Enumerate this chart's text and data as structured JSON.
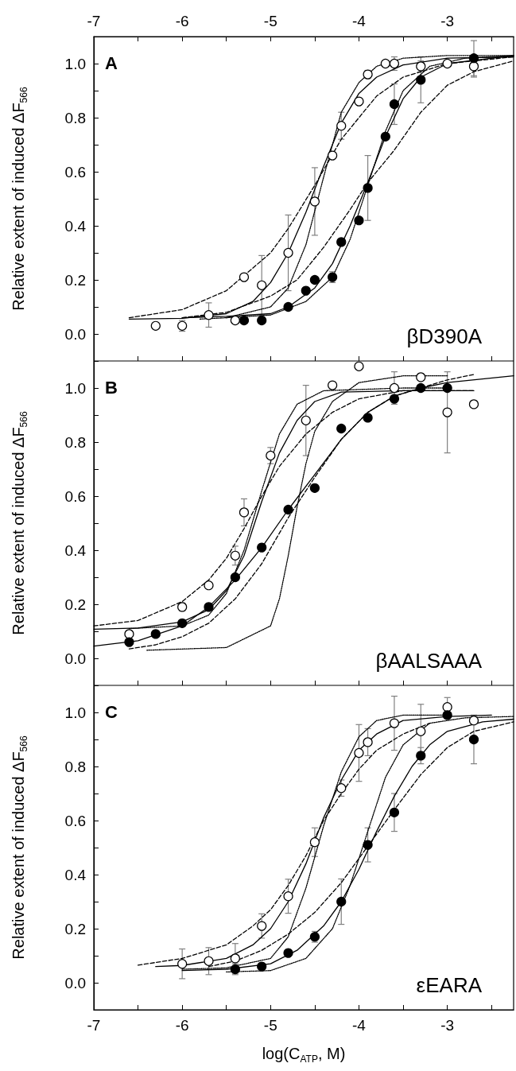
{
  "chart_data": [
    {
      "type": "scatter",
      "ylabel": "Relative extent of induced ΔF$_{566}$",
      "annotations": [
        "A",
        "βD390A"
      ],
      "ylim": [
        -0.1,
        1.1
      ],
      "xlim": [
        -7,
        -2.25
      ],
      "xticks": [
        -7,
        {
          "value": -6.5,
          "label": null
        },
        -6,
        {
          "value": -5.5,
          "label": null
        },
        -5,
        {
          "value": -4.5,
          "label": null
        },
        -4,
        {
          "value": -3.5,
          "label": null
        },
        -3,
        {
          "value": -2.5,
          "label": null
        }
      ],
      "yticks": [
        {
          "value": -0.1,
          "label": null
        },
        {
          "value": 0,
          "label": "0.0"
        },
        {
          "value": 0.1,
          "label": null
        },
        0.2,
        {
          "value": 0.3,
          "label": null
        },
        0.4,
        {
          "value": 0.5,
          "label": null
        },
        0.6,
        {
          "value": 0.7,
          "label": null
        },
        0.8,
        {
          "value": 0.9,
          "label": null
        },
        {
          "value": 1,
          "label": "1.0"
        },
        {
          "value": 1.1,
          "label": null
        }
      ],
      "series": [
        {
          "type": "line",
          "color": "#000000",
          "line_style": "solid",
          "marker": "none",
          "x": [
            -6.6,
            -6.0,
            -5.5,
            -5.2,
            -5.0,
            -4.8,
            -4.6,
            -4.4,
            -4.2,
            -4.0,
            -3.8,
            -3.5,
            -3.0,
            -2.25
          ],
          "values": [
            0.055,
            0.058,
            0.075,
            0.12,
            0.19,
            0.3,
            0.45,
            0.62,
            0.78,
            0.89,
            0.95,
            0.995,
            1.02,
            1.025
          ]
        },
        {
          "type": "line",
          "color": "#000000",
          "line_style": "dashed",
          "marker": "none",
          "x": [
            -6.6,
            -6.0,
            -5.5,
            -5.0,
            -4.8,
            -4.5,
            -4.2,
            -4.0,
            -3.8,
            -3.5,
            -3.0,
            -2.25
          ],
          "values": [
            0.06,
            0.09,
            0.16,
            0.3,
            0.39,
            0.55,
            0.72,
            0.8,
            0.88,
            0.95,
            1.0,
            1.025
          ]
        },
        {
          "type": "line",
          "color": "#000000",
          "line_style": "dotted",
          "marker": "none",
          "x": [
            -5.8,
            -5.5,
            -5.0,
            -4.8,
            -4.6,
            -4.4,
            -4.2,
            -4.0,
            -3.8,
            -3.5,
            -3.0,
            -2.25
          ],
          "values": [
            0.055,
            0.06,
            0.1,
            0.17,
            0.33,
            0.58,
            0.82,
            0.93,
            0.99,
            1.02,
            1.03,
            1.03
          ]
        },
        {
          "type": "line",
          "color": "#000000",
          "line_style": "solid",
          "marker": "none",
          "x": [
            -6.0,
            -5.5,
            -5.0,
            -4.8,
            -4.5,
            -4.3,
            -4.1,
            -3.9,
            -3.7,
            -3.5,
            -3.3,
            -3.0,
            -2.25
          ],
          "values": [
            0.06,
            0.065,
            0.075,
            0.1,
            0.17,
            0.26,
            0.4,
            0.56,
            0.73,
            0.87,
            0.95,
            1.0,
            1.03
          ]
        },
        {
          "type": "line",
          "color": "#000000",
          "line_style": "dashed",
          "marker": "none",
          "x": [
            -6.0,
            -5.5,
            -5.0,
            -4.7,
            -4.4,
            -4.1,
            -3.9,
            -3.6,
            -3.3,
            -3.0,
            -2.7,
            -2.25
          ],
          "values": [
            0.06,
            0.08,
            0.14,
            0.2,
            0.32,
            0.46,
            0.56,
            0.68,
            0.82,
            0.92,
            0.97,
            1.01
          ]
        },
        {
          "type": "line",
          "color": "#000000",
          "line_style": "dotted",
          "marker": "none",
          "x": [
            -5.5,
            -5.0,
            -4.6,
            -4.3,
            -4.1,
            -3.9,
            -3.7,
            -3.5,
            -3.2,
            -2.8,
            -2.25
          ],
          "values": [
            0.06,
            0.07,
            0.12,
            0.21,
            0.35,
            0.55,
            0.75,
            0.9,
            0.99,
            1.02,
            1.03
          ]
        },
        {
          "color": "#ffffff",
          "marker": "circle",
          "x": [
            -6.3,
            -6.0,
            -5.7,
            -5.4,
            -5.3,
            -5.1,
            -4.8,
            -4.5,
            -4.3,
            -4.2,
            -4.0,
            -3.9,
            -3.7,
            -3.6,
            -3.3,
            -3.0,
            -2.7
          ],
          "values": [
            0.03,
            0.03,
            0.07,
            0.05,
            0.21,
            0.18,
            0.3,
            0.49,
            0.66,
            0.77,
            0.86,
            0.96,
            1.0,
            1.0,
            0.99,
            1.0,
            0.99
          ],
          "errors": [
            null,
            0.02,
            0.045,
            null,
            null,
            0.11,
            0.14,
            0.125,
            null,
            0.05,
            null,
            0.015,
            null,
            0.025,
            0.02,
            null,
            0.04
          ]
        },
        {
          "color": "#000000",
          "marker": "circle",
          "x": [
            -5.3,
            -5.1,
            -4.8,
            -4.6,
            -4.5,
            -4.3,
            -4.2,
            -4.0,
            -3.9,
            -3.7,
            -3.6,
            -3.3,
            -2.7
          ],
          "values": [
            0.05,
            0.05,
            0.1,
            0.16,
            0.2,
            0.21,
            0.34,
            0.42,
            0.54,
            0.73,
            0.85,
            0.94,
            1.02
          ],
          "errors": [
            null,
            0.01,
            null,
            null,
            null,
            0.02,
            null,
            null,
            0.12,
            null,
            0.075,
            0.085,
            0.065
          ]
        }
      ]
    },
    {
      "type": "scatter",
      "ylabel": "Relative extent of induced ΔF$_{566}$",
      "annotations": [
        "B",
        "βAALSAAA"
      ],
      "xlim": [
        -7,
        -2.25
      ],
      "ylim": [
        -0.1,
        1.1
      ],
      "tick_labels": "y",
      "xticks": [
        -7,
        -6.5,
        -6,
        -5.5,
        -5,
        -4.5,
        -4,
        -3.5,
        -3,
        -2.5
      ],
      "yticks": [
        {
          "value": -0.1,
          "label": null
        },
        {
          "value": 0,
          "label": "0.0"
        },
        {
          "value": 0.1,
          "label": null
        },
        0.2,
        {
          "value": 0.3,
          "label": null
        },
        0.4,
        {
          "value": 0.5,
          "label": null
        },
        0.6,
        {
          "value": 0.7,
          "label": null
        },
        0.8,
        {
          "value": 0.9,
          "label": null
        },
        {
          "value": 1,
          "label": "1.0"
        },
        {
          "value": 1.1,
          "label": null
        }
      ],
      "series": [
        {
          "type": "line",
          "color": "#000000",
          "line_style": "solid",
          "marker": "none",
          "x": [
            -7,
            -6.5,
            -6.0,
            -5.7,
            -5.5,
            -5.3,
            -5.1,
            -4.9,
            -4.7,
            -4.5,
            -4.2,
            -3.5,
            -2.7
          ],
          "values": [
            0.108,
            0.112,
            0.135,
            0.18,
            0.25,
            0.38,
            0.58,
            0.76,
            0.88,
            0.95,
            0.985,
            0.99,
            0.99
          ]
        },
        {
          "type": "line",
          "color": "#000000",
          "line_style": "dashed",
          "marker": "none",
          "x": [
            -7,
            -6.5,
            -6.0,
            -5.7,
            -5.5,
            -5.3,
            -5.1,
            -4.9,
            -4.6,
            -4.3,
            -4.0,
            -3.5,
            -3.0,
            -2.7
          ],
          "values": [
            0.12,
            0.14,
            0.21,
            0.29,
            0.37,
            0.48,
            0.6,
            0.71,
            0.83,
            0.91,
            0.96,
            0.99,
            0.99,
            0.99
          ]
        },
        {
          "type": "line",
          "color": "#000000",
          "line_style": "dotted",
          "marker": "none",
          "x": [
            -6.6,
            -6.0,
            -5.7,
            -5.5,
            -5.3,
            -5.1,
            -4.9,
            -4.7,
            -4.4,
            -3.5,
            -3.0
          ],
          "values": [
            0.11,
            0.12,
            0.16,
            0.24,
            0.4,
            0.62,
            0.83,
            0.94,
            0.99,
            1.0,
            1.0
          ]
        },
        {
          "type": "line",
          "color": "#000000",
          "line_style": "solid",
          "marker": "none",
          "x": [
            -7,
            -6.5,
            -6.0,
            -5.7,
            -5.4,
            -5.1,
            -4.8,
            -4.5,
            -4.2,
            -3.9,
            -3.6,
            -3.3,
            -3.0,
            -2.25
          ],
          "values": [
            0.045,
            0.065,
            0.12,
            0.19,
            0.29,
            0.41,
            0.55,
            0.68,
            0.81,
            0.91,
            0.97,
            1.0,
            1.02,
            1.045
          ]
        },
        {
          "type": "line",
          "color": "#000000",
          "line_style": "dashed",
          "marker": "none",
          "x": [
            -6.6,
            -6.3,
            -6.0,
            -5.7,
            -5.4,
            -5.1,
            -4.8,
            -4.5,
            -4.2,
            -3.9,
            -3.6,
            -3.3,
            -3.0,
            -2.7
          ],
          "values": [
            0.035,
            0.05,
            0.08,
            0.13,
            0.22,
            0.35,
            0.52,
            0.67,
            0.81,
            0.91,
            0.97,
            1.0,
            1.03,
            1.05
          ]
        },
        {
          "type": "line",
          "color": "#000000",
          "line_style": "dotted",
          "marker": "none",
          "x": [
            -6.4,
            -5.5,
            -5.0,
            -4.9,
            -4.8,
            -4.7,
            -4.6,
            -4.5,
            -4.3,
            -4.0,
            -3.5,
            -3.0
          ],
          "values": [
            0.03,
            0.04,
            0.12,
            0.22,
            0.38,
            0.56,
            0.72,
            0.84,
            0.95,
            1.02,
            1.045,
            1.045
          ]
        },
        {
          "color": "#ffffff",
          "marker": "circle",
          "x": [
            -6.6,
            -6.0,
            -5.7,
            -5.4,
            -5.3,
            -5.0,
            -4.6,
            -4.3,
            -4.0,
            -3.6,
            -3.3,
            -3.0,
            -2.7
          ],
          "values": [
            0.09,
            0.19,
            0.27,
            0.38,
            0.54,
            0.75,
            0.88,
            1.01,
            1.08,
            1.0,
            1.04,
            0.91,
            0.94
          ],
          "errors": [
            0.01,
            0.015,
            0.01,
            0.035,
            0.05,
            0.03,
            0.13,
            null,
            null,
            0.06,
            null,
            0.15,
            null
          ]
        },
        {
          "color": "#000000",
          "marker": "circle",
          "x": [
            -6.6,
            -6.3,
            -6.0,
            -5.7,
            -5.4,
            -5.1,
            -4.8,
            -4.5,
            -4.2,
            -3.9,
            -3.6,
            -3.3,
            -3.0
          ],
          "values": [
            0.06,
            0.09,
            0.13,
            0.19,
            0.3,
            0.41,
            0.55,
            0.63,
            0.85,
            0.89,
            0.96,
            1.0,
            1.0
          ]
        }
      ]
    },
    {
      "type": "scatter",
      "ylabel": "Relative extent of induced ΔF$_{566}$",
      "xlabel": "log(C$_{ATP}$, M)",
      "annotations": [
        "C",
        "εEARA"
      ],
      "xlim": [
        -7,
        -2.25
      ],
      "ylim": [
        -0.1,
        1.1
      ],
      "xticks": [
        -7,
        {
          "value": -6.5,
          "label": null
        },
        -6,
        {
          "value": -5.5,
          "label": null
        },
        -5,
        {
          "value": -4.5,
          "label": null
        },
        -4,
        {
          "value": -3.5,
          "label": null
        },
        -3,
        {
          "value": -2.5,
          "label": null
        }
      ],
      "yticks": [
        {
          "value": -0.1,
          "label": null
        },
        {
          "value": 0,
          "label": "0.0"
        },
        {
          "value": 0.1,
          "label": null
        },
        0.2,
        {
          "value": 0.3,
          "label": null
        },
        0.4,
        {
          "value": 0.5,
          "label": null
        },
        0.6,
        {
          "value": 0.7,
          "label": null
        },
        0.8,
        {
          "value": 0.9,
          "label": null
        },
        {
          "value": 1,
          "label": "1.0"
        },
        {
          "value": 1.1,
          "label": null
        }
      ],
      "series": [
        {
          "type": "line",
          "color": "#000000",
          "line_style": "solid",
          "marker": "none",
          "x": [
            -6.3,
            -6.0,
            -5.5,
            -5.2,
            -5.0,
            -4.8,
            -4.6,
            -4.4,
            -4.2,
            -4.0,
            -3.8,
            -3.5,
            -3.0,
            -2.5
          ],
          "values": [
            0.06,
            0.064,
            0.09,
            0.14,
            0.2,
            0.3,
            0.44,
            0.61,
            0.75,
            0.86,
            0.92,
            0.97,
            0.985,
            0.99
          ]
        },
        {
          "type": "line",
          "color": "#000000",
          "line_style": "dashed",
          "marker": "none",
          "x": [
            -6.5,
            -6.0,
            -5.5,
            -5.2,
            -5.0,
            -4.8,
            -4.6,
            -4.4,
            -4.2,
            -4.0,
            -3.8,
            -3.5,
            -3.2
          ],
          "values": [
            0.065,
            0.09,
            0.14,
            0.21,
            0.27,
            0.36,
            0.47,
            0.6,
            0.7,
            0.79,
            0.86,
            0.92,
            0.96
          ]
        },
        {
          "type": "line",
          "color": "#000000",
          "line_style": "dotted",
          "marker": "none",
          "x": [
            -6.0,
            -5.5,
            -5.0,
            -4.8,
            -4.6,
            -4.4,
            -4.2,
            -4.0,
            -3.8,
            -3.5,
            -3.0
          ],
          "values": [
            0.05,
            0.055,
            0.09,
            0.17,
            0.35,
            0.58,
            0.78,
            0.91,
            0.97,
            0.99,
            0.99
          ]
        },
        {
          "type": "line",
          "color": "#000000",
          "line_style": "solid",
          "marker": "none",
          "x": [
            -6.0,
            -5.5,
            -5.0,
            -4.7,
            -4.4,
            -4.2,
            -4.0,
            -3.8,
            -3.6,
            -3.4,
            -3.2,
            -3.0,
            -2.6,
            -2.25
          ],
          "values": [
            0.045,
            0.05,
            0.07,
            0.12,
            0.21,
            0.3,
            0.42,
            0.56,
            0.69,
            0.8,
            0.88,
            0.93,
            0.965,
            0.975
          ]
        },
        {
          "type": "line",
          "color": "#000000",
          "line_style": "dashed",
          "marker": "none",
          "x": [
            -5.7,
            -5.4,
            -5.1,
            -4.8,
            -4.5,
            -4.2,
            -4.0,
            -3.8,
            -3.6,
            -3.3,
            -3.0,
            -2.7,
            -2.25
          ],
          "values": [
            0.06,
            0.08,
            0.12,
            0.18,
            0.26,
            0.37,
            0.46,
            0.55,
            0.64,
            0.77,
            0.87,
            0.93,
            0.965
          ]
        },
        {
          "type": "line",
          "color": "#000000",
          "line_style": "dotted",
          "marker": "none",
          "x": [
            -5.5,
            -5.0,
            -4.6,
            -4.3,
            -4.1,
            -3.9,
            -3.7,
            -3.5,
            -3.2,
            -2.8,
            -2.25
          ],
          "values": [
            0.04,
            0.045,
            0.09,
            0.2,
            0.36,
            0.56,
            0.76,
            0.88,
            0.96,
            0.98,
            0.985
          ]
        },
        {
          "color": "#ffffff",
          "marker": "circle",
          "x": [
            -6.0,
            -5.7,
            -5.4,
            -5.1,
            -4.8,
            -4.5,
            -4.2,
            -4.0,
            -3.9,
            -3.6,
            -3.3,
            -3.0,
            -2.7
          ],
          "values": [
            0.07,
            0.08,
            0.09,
            0.21,
            0.32,
            0.52,
            0.72,
            0.85,
            0.89,
            0.96,
            0.93,
            1.02,
            0.97
          ],
          "errors": [
            0.055,
            0.05,
            0.055,
            0.045,
            0.063,
            0.053,
            0.03,
            0.105,
            0.05,
            0.1,
            0.1,
            0.035,
            0.01
          ]
        },
        {
          "color": "#000000",
          "marker": "circle",
          "x": [
            -5.4,
            -5.1,
            -4.8,
            -4.5,
            -4.2,
            -3.9,
            -3.6,
            -3.3,
            -3.0,
            -2.7
          ],
          "values": [
            0.05,
            0.06,
            0.11,
            0.17,
            0.3,
            0.51,
            0.63,
            0.84,
            0.99,
            0.9
          ],
          "errors": [
            0.02,
            null,
            null,
            0.02,
            0.084,
            0.063,
            0.07,
            0.03,
            null,
            0.09
          ]
        }
      ]
    }
  ]
}
